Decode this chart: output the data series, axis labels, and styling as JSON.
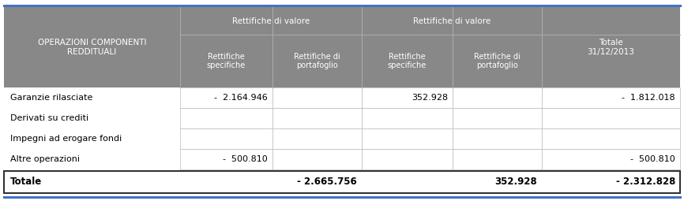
{
  "header_row1": {
    "col0": "OPERAZIONI COMPONENTI\nREDDITUALI",
    "col12_span": "Rettifiche di valore",
    "col34_span": "Rettifiche di valore",
    "col5": "Totale\n31/12/2013"
  },
  "header_row2": {
    "col1": "Rettifiche\nspecifiche",
    "col2": "Rettifiche di\nportafoglio",
    "col3": "Rettifiche\nspecifiche",
    "col4": "Rettifiche di\nportafoglio"
  },
  "rows": [
    {
      "label": "Garanzie rilasciate",
      "col1": "-  2.164.946",
      "col2": "",
      "col3": "352.928",
      "col4": "",
      "col5": "-  1.812.018"
    },
    {
      "label": "Derivati su crediti",
      "col1": "",
      "col2": "",
      "col3": "",
      "col4": "",
      "col5": ""
    },
    {
      "label": "Impegni ad erogare fondi",
      "col1": "",
      "col2": "",
      "col3": "",
      "col4": "",
      "col5": ""
    },
    {
      "label": "Altre operazioni",
      "col1": "-  500.810",
      "col2": "",
      "col3": "",
      "col4": "",
      "col5": "-  500.810"
    }
  ],
  "total_row": {
    "label": "Totale",
    "col1": "- 2.665.756",
    "col3": "352.928",
    "col5": "- 2.312.828"
  },
  "header_bg": "#888888",
  "header_text_color": "#ffffff",
  "border_color_blue": "#4472c4",
  "border_color_inner": "#bbbbbb",
  "border_color_total": "#333333",
  "text_color_data": "#000000",
  "font_size_header": 7.5,
  "font_size_data": 8.0
}
